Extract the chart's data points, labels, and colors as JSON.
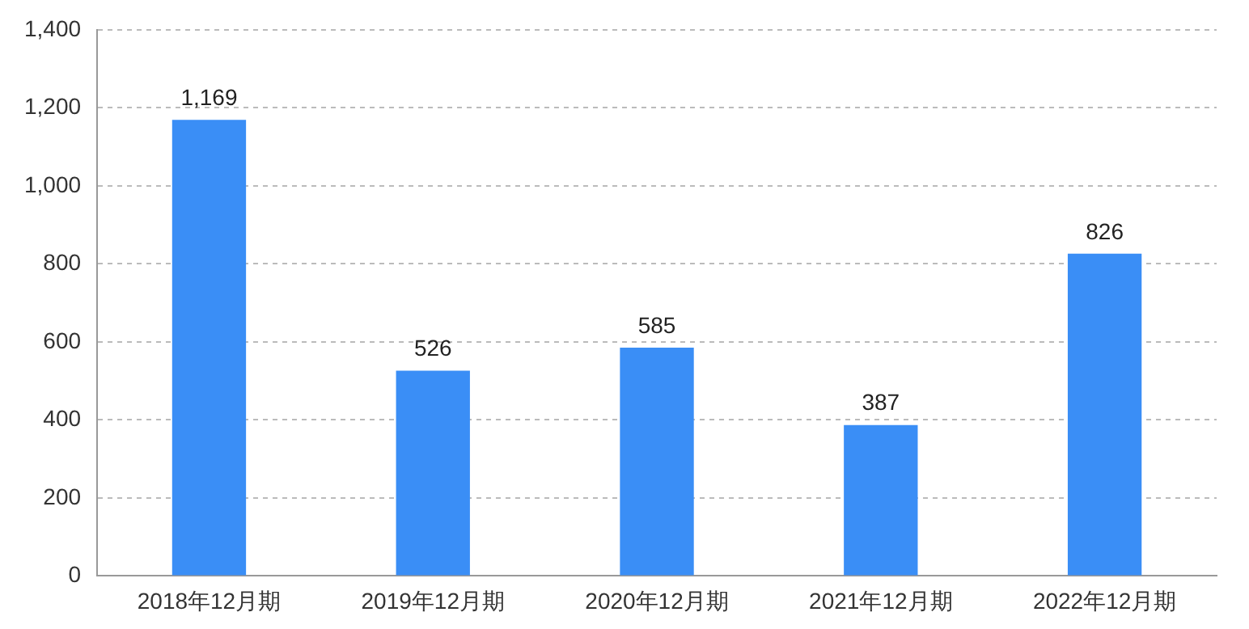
{
  "chart_data": {
    "type": "bar",
    "categories": [
      "2018年12月期",
      "2019年12月期",
      "2020年12月期",
      "2021年12月期",
      "2022年12月期"
    ],
    "values": [
      1169,
      526,
      585,
      387,
      826
    ],
    "color": "#3a8ef6",
    "ylim": [
      0,
      1400
    ],
    "yticks": [
      0,
      200,
      400,
      600,
      800,
      {
        "value": 1000,
        "label": "1,000"
      },
      {
        "value": 1200,
        "label": "1,200"
      },
      {
        "value": 1400,
        "label": "1,400"
      }
    ],
    "value_labels": [
      "1,169",
      "526",
      "585",
      "387",
      "826"
    ],
    "grid": "y"
  }
}
